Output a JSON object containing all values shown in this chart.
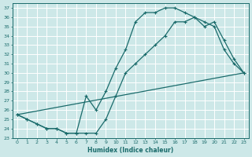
{
  "xlabel": "Humidex (Indice chaleur)",
  "bg_color": "#cde8e8",
  "line_color": "#1a6b6b",
  "grid_color": "#b8d8d8",
  "xlim": [
    -0.5,
    23.5
  ],
  "ylim": [
    23,
    37.5
  ],
  "yticks": [
    23,
    24,
    25,
    26,
    27,
    28,
    29,
    30,
    31,
    32,
    33,
    34,
    35,
    36,
    37
  ],
  "xticks": [
    0,
    1,
    2,
    3,
    4,
    5,
    6,
    7,
    8,
    9,
    10,
    11,
    12,
    13,
    14,
    15,
    16,
    17,
    18,
    19,
    20,
    21,
    22,
    23
  ],
  "line1_x": [
    0,
    1,
    2,
    3,
    4,
    5,
    6,
    7,
    8,
    9,
    10,
    11,
    12,
    13,
    14,
    15,
    16,
    17,
    18,
    19,
    20,
    21,
    22,
    23
  ],
  "line1_y": [
    25.5,
    25.0,
    24.5,
    24.0,
    24.0,
    23.5,
    23.5,
    27.5,
    26.0,
    28.0,
    30.5,
    32.5,
    35.5,
    36.5,
    36.5,
    37.0,
    37.0,
    36.5,
    36.0,
    35.5,
    35.0,
    32.5,
    31.0,
    30.0
  ],
  "line2_x": [
    0,
    1,
    2,
    3,
    4,
    5,
    6,
    7,
    8,
    9,
    10,
    11,
    12,
    13,
    14,
    15,
    16,
    17,
    18,
    19,
    20,
    21,
    22,
    23
  ],
  "line2_y": [
    25.5,
    25.0,
    24.5,
    24.0,
    24.0,
    23.5,
    23.5,
    23.5,
    23.5,
    25.0,
    27.5,
    30.0,
    31.0,
    32.0,
    33.0,
    34.0,
    35.5,
    35.5,
    36.0,
    35.0,
    35.5,
    33.5,
    31.5,
    30.0
  ],
  "line3_x": [
    0,
    23
  ],
  "line3_y": [
    25.5,
    30.0
  ]
}
